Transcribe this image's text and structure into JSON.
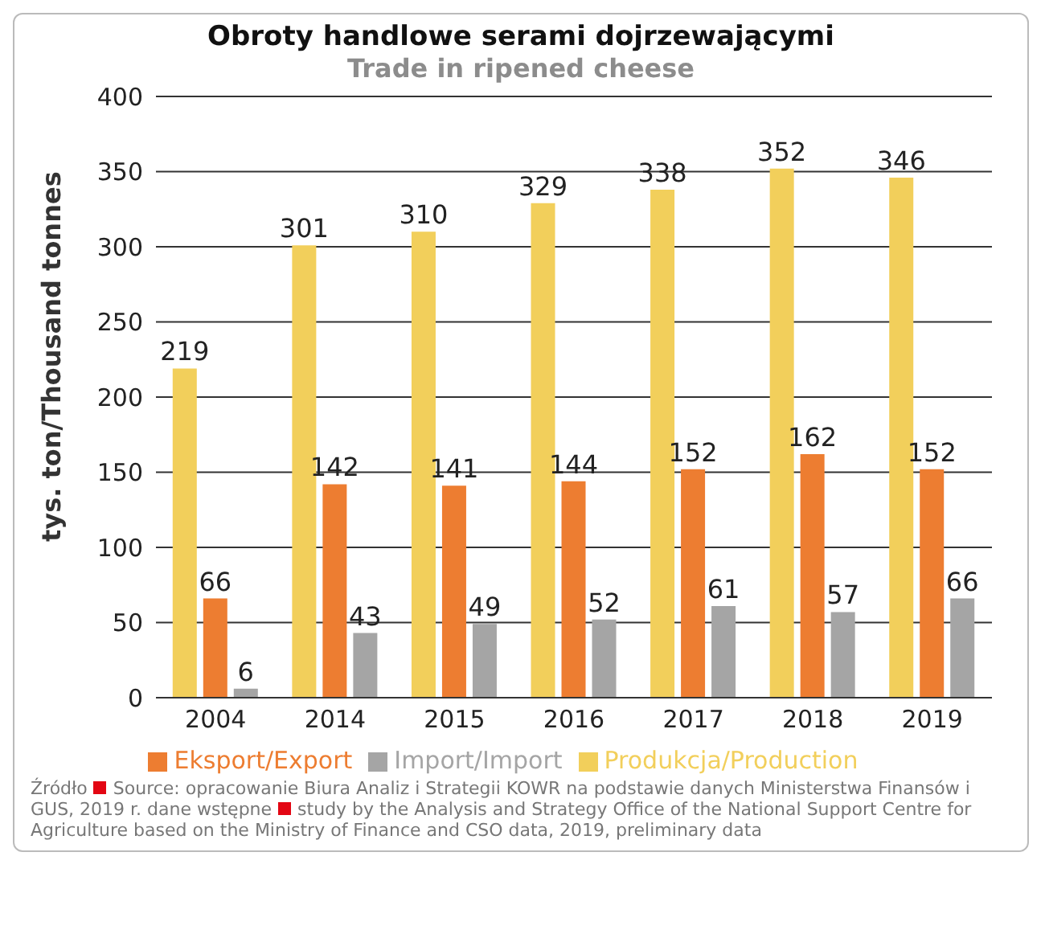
{
  "chart_data": {
    "type": "bar",
    "title": "Obroty handlowe serami dojrzewającymi",
    "subtitle": "Trade in ripened cheese",
    "ylabel": "tys. ton/Thousand tonnes",
    "categories": [
      "2004",
      "2014",
      "2015",
      "2016",
      "2017",
      "2018",
      "2019"
    ],
    "series": [
      {
        "name": "Produkcja/Production",
        "color": "#f2cf5b",
        "values": [
          219,
          301,
          310,
          329,
          338,
          352,
          346
        ]
      },
      {
        "name": "Eksport/Export",
        "color": "#ed7d31",
        "values": [
          66,
          142,
          141,
          144,
          152,
          162,
          152
        ]
      },
      {
        "name": "Import/Import",
        "color": "#a5a5a5",
        "values": [
          6,
          43,
          49,
          52,
          61,
          57,
          66
        ]
      }
    ],
    "ylim": [
      0,
      400
    ],
    "yticks": [
      0,
      50,
      100,
      150,
      200,
      250,
      300,
      350,
      400
    ],
    "grid": "y",
    "legend": "bottom",
    "data_labels": true,
    "annotations": [
      "Źródło",
      "Source: opracowanie Biura Analiz i Strategii KOWR na podstawie danych Ministerstwa Finansów i GUS, 2019 r. dane wstępne",
      "study by the Analysis and Strategy Office of the National Support Centre for Agriculture based on the Ministry of Finance and CSO data, 2019, preliminary data"
    ]
  }
}
